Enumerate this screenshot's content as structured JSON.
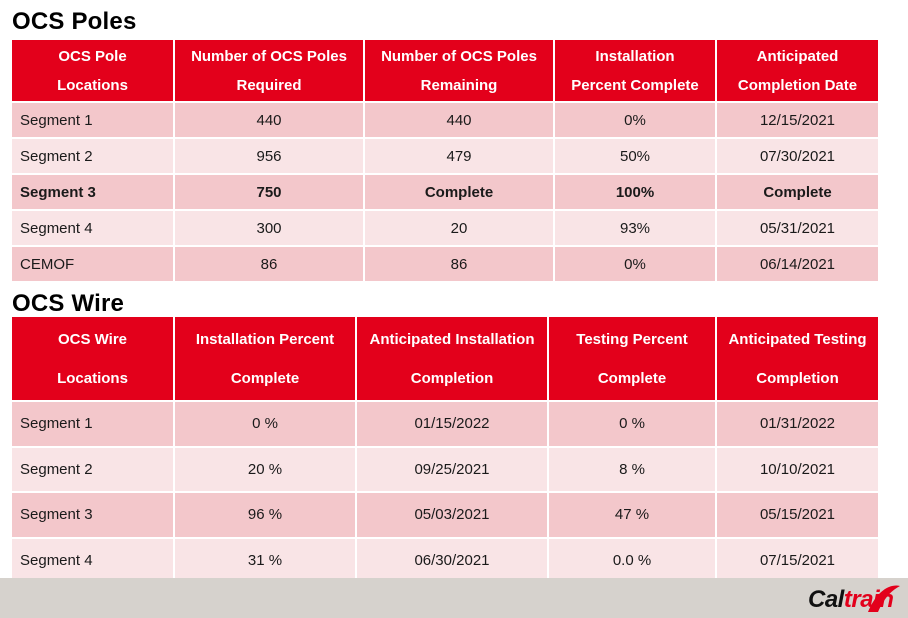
{
  "poles": {
    "title": "OCS Poles",
    "headers": [
      [
        "OCS Pole",
        "Locations"
      ],
      [
        "Number of OCS Poles",
        "Required"
      ],
      [
        "Number of OCS Poles",
        "Remaining"
      ],
      [
        "Installation",
        "Percent Complete"
      ],
      [
        "Anticipated",
        "Completion Date"
      ]
    ],
    "rows": [
      [
        "Segment 1",
        "440",
        "440",
        "0%",
        "12/15/2021"
      ],
      [
        "Segment 2",
        "956",
        "479",
        "50%",
        "07/30/2021"
      ],
      [
        "Segment 3",
        "750",
        "Complete",
        "100%",
        "Complete"
      ],
      [
        "Segment 4",
        "300",
        "20",
        "93%",
        "05/31/2021"
      ],
      [
        "CEMOF",
        "86",
        "86",
        "0%",
        "06/14/2021"
      ]
    ]
  },
  "wire": {
    "title": "OCS Wire",
    "headers": [
      [
        "OCS Wire",
        "Locations"
      ],
      [
        "Installation Percent",
        "Complete"
      ],
      [
        "Anticipated Installation",
        "Completion"
      ],
      [
        "Testing Percent",
        "Complete"
      ],
      [
        "Anticipated Testing",
        "Completion"
      ]
    ],
    "rows": [
      [
        "Segment 1",
        "0 %",
        "01/15/2022",
        "0 %",
        "01/31/2022"
      ],
      [
        "Segment 2",
        "20 %",
        "09/25/2021",
        "8 %",
        "10/10/2021"
      ],
      [
        "Segment 3",
        "96 %",
        "05/03/2021",
        "47 %",
        "05/15/2021"
      ],
      [
        "Segment 4",
        "31 %",
        "06/30/2021",
        "0.0 %",
        "07/15/2021"
      ]
    ]
  },
  "logo": {
    "text_main": "Cal",
    "text_accent": "train",
    "icon": "caltrain-swoosh-icon"
  },
  "colors": {
    "header_red": "#e3001b",
    "row_dark": "#f3c7cb",
    "row_light": "#f9e4e6",
    "footer_band": "#d6d2cd"
  }
}
